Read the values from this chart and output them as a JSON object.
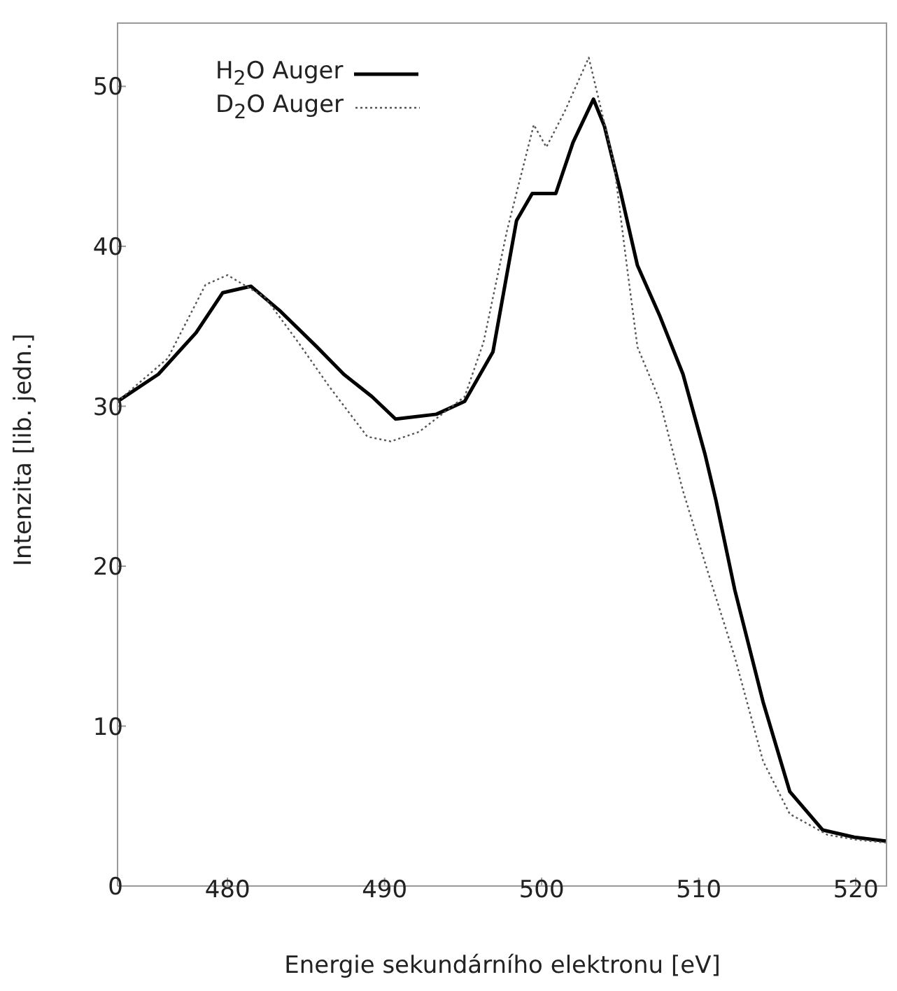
{
  "chart_data": {
    "type": "line",
    "xlabel": "Energie sekundárního elektronu [eV]",
    "ylabel": "Intenzita [lib. jedn.]",
    "xlim": [
      473,
      522
    ],
    "xticks": [
      480,
      490,
      500,
      510,
      520
    ],
    "ylim": [
      0,
      54
    ],
    "yticks": [
      0,
      10,
      20,
      30,
      40,
      50
    ],
    "grid": false,
    "legend": "top left",
    "marker": "none",
    "series": [
      {
        "name": "H$_{2}$O Auger",
        "color": "#000000",
        "line_style": "solid",
        "x": [
          473,
          475.6,
          478,
          479.7,
          481.5,
          483.3,
          485.7,
          487.4,
          489.2,
          490.7,
          493.3,
          495.1,
          496.9,
          498.4,
          499.4,
          500.9,
          502,
          503.3,
          504,
          505,
          506.1,
          507.5,
          509,
          510.4,
          511.1,
          512.3,
          514.1,
          515.8,
          517.9,
          519.9,
          522
        ],
        "values": [
          30.3,
          32,
          34.6,
          37.1,
          37.5,
          36,
          33.7,
          32,
          30.6,
          29.2,
          29.5,
          30.3,
          33.4,
          41.6,
          43.3,
          43.3,
          46.5,
          49.2,
          47.5,
          43.5,
          38.8,
          35.7,
          32,
          27,
          24.1,
          18.5,
          11.5,
          5.9,
          3.5,
          3.05,
          2.8
        ]
      },
      {
        "name": "D$_{2}$O Auger",
        "color": "#555555",
        "line_style": "dotted",
        "x": [
          473,
          476.2,
          478.6,
          480,
          482.4,
          484.5,
          486.5,
          488.9,
          490.4,
          492.2,
          495.1,
          496.3,
          497.8,
          499.5,
          500.3,
          501.5,
          503,
          504.6,
          505.5,
          506.1,
          507.5,
          509,
          510.5,
          512.3,
          514.1,
          515.8,
          518.2,
          520,
          522
        ],
        "values": [
          30.3,
          33,
          37.6,
          38.2,
          36.8,
          34,
          31.2,
          28.1,
          27.8,
          28.4,
          30.6,
          34,
          41,
          47.6,
          46.2,
          48.5,
          51.8,
          45.2,
          38.2,
          33.7,
          30.4,
          24.7,
          19.9,
          14.3,
          7.8,
          4.5,
          3.2,
          2.9,
          2.7
        ]
      }
    ]
  }
}
